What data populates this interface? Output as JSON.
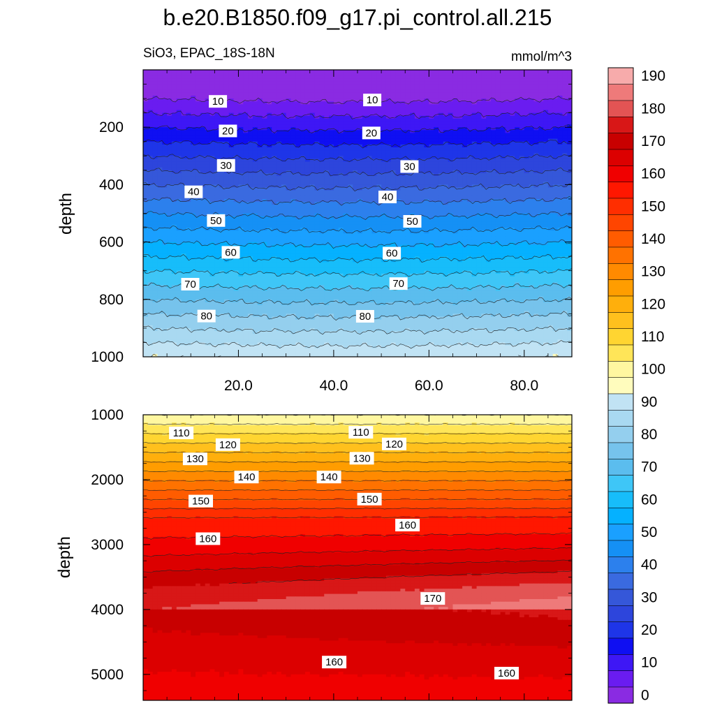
{
  "chart_data": {
    "type": "heatmap",
    "title": "b.e20.B1850.f09_g17.pi_control.all.215",
    "subtitle_left": "SiO3, EPAC_18S-18N",
    "units": "mmol/m^3",
    "colorbar": {
      "levels": [
        0,
        5,
        10,
        15,
        20,
        25,
        30,
        35,
        40,
        45,
        50,
        55,
        60,
        65,
        70,
        75,
        80,
        85,
        90,
        95,
        100,
        105,
        110,
        115,
        120,
        125,
        130,
        135,
        140,
        145,
        150,
        155,
        160,
        165,
        170,
        175,
        180,
        185,
        190
      ],
      "tick_labels": [
        "0",
        "10",
        "20",
        "30",
        "40",
        "50",
        "60",
        "70",
        "80",
        "90",
        "100",
        "110",
        "120",
        "130",
        "140",
        "150",
        "160",
        "170",
        "180",
        "190"
      ],
      "colors": [
        "#8a2be2",
        "#6a1cf0",
        "#3e17f5",
        "#0f0ff2",
        "#1e35e8",
        "#2d45dc",
        "#3557d9",
        "#3a6ae0",
        "#2c80ed",
        "#1590f5",
        "#1aa0ff",
        "#05b1ff",
        "#17bdfa",
        "#3ec6f7",
        "#5bbdee",
        "#76c3ec",
        "#94cfee",
        "#a9d9f1",
        "#c1e3f4",
        "#fffcbd",
        "#fff7a0",
        "#ffe558",
        "#ffd531",
        "#ffc01d",
        "#ffaf0c",
        "#ff9d00",
        "#ff8a00",
        "#ff7200",
        "#ff5c00",
        "#ff4500",
        "#ff2e00",
        "#ff1700",
        "#f00000",
        "#dc0000",
        "#c80000",
        "#d81717",
        "#e35454",
        "#ee7a7a",
        "#f7abab"
      ]
    },
    "panels": [
      {
        "name": "upper",
        "ylabel": "depth",
        "ylim": [
          0,
          1000
        ],
        "xlim": [
          0,
          90
        ],
        "yticks": [
          200,
          400,
          600,
          800,
          1000
        ],
        "xticks": [
          20,
          40,
          60,
          80
        ],
        "xtick_labels": [
          "20.0",
          "40.0",
          "60.0",
          "80.0"
        ],
        "contour_labels": [
          {
            "text": "10",
            "x": 15.7,
            "y": 110
          },
          {
            "text": "10",
            "x": 48.1,
            "y": 105
          },
          {
            "text": "20",
            "x": 17.8,
            "y": 213
          },
          {
            "text": "20",
            "x": 47.9,
            "y": 220
          },
          {
            "text": "30",
            "x": 17.4,
            "y": 333
          },
          {
            "text": "30",
            "x": 55.9,
            "y": 337
          },
          {
            "text": "40",
            "x": 10.6,
            "y": 425
          },
          {
            "text": "40",
            "x": 51.3,
            "y": 443
          },
          {
            "text": "50",
            "x": 15.3,
            "y": 525
          },
          {
            "text": "50",
            "x": 56.5,
            "y": 528
          },
          {
            "text": "60",
            "x": 18.4,
            "y": 636
          },
          {
            "text": "60",
            "x": 52.2,
            "y": 639
          },
          {
            "text": "70",
            "x": 9.9,
            "y": 747
          },
          {
            "text": "70",
            "x": 53.6,
            "y": 745
          },
          {
            "text": "80",
            "x": 13.3,
            "y": 858
          },
          {
            "text": "80",
            "x": 46.6,
            "y": 859
          }
        ]
      },
      {
        "name": "lower",
        "ylabel": "depth",
        "ylim": [
          1000,
          5400
        ],
        "xlim": [
          0,
          90
        ],
        "yticks": [
          1000,
          2000,
          3000,
          4000,
          5000
        ],
        "contour_labels": [
          {
            "text": "110",
            "x": 8.0,
            "y": 1280
          },
          {
            "text": "110",
            "x": 45.7,
            "y": 1270
          },
          {
            "text": "120",
            "x": 17.8,
            "y": 1460
          },
          {
            "text": "120",
            "x": 52.7,
            "y": 1450
          },
          {
            "text": "130",
            "x": 10.9,
            "y": 1680
          },
          {
            "text": "130",
            "x": 45.9,
            "y": 1670
          },
          {
            "text": "140",
            "x": 21.7,
            "y": 1960
          },
          {
            "text": "140",
            "x": 39.0,
            "y": 1960
          },
          {
            "text": "150",
            "x": 12.1,
            "y": 2330
          },
          {
            "text": "150",
            "x": 47.5,
            "y": 2300
          },
          {
            "text": "160",
            "x": 13.6,
            "y": 2910
          },
          {
            "text": "160",
            "x": 55.5,
            "y": 2700
          },
          {
            "text": "170",
            "x": 60.8,
            "y": 3830
          },
          {
            "text": "160",
            "x": 40.1,
            "y": 4810
          },
          {
            "text": "160",
            "x": 76.3,
            "y": 4980
          }
        ]
      }
    ]
  }
}
